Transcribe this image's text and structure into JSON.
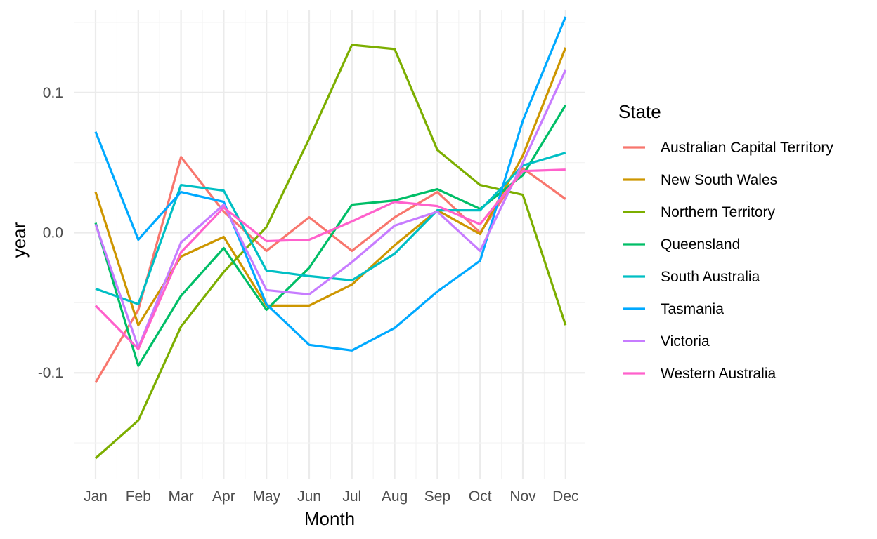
{
  "chart_data": {
    "type": "line",
    "xlabel": "Month",
    "ylabel": "year",
    "categories": [
      "Jan",
      "Feb",
      "Mar",
      "Apr",
      "May",
      "Jun",
      "Jul",
      "Aug",
      "Sep",
      "Oct",
      "Nov",
      "Dec"
    ],
    "ylim": [
      -0.176,
      0.159
    ],
    "yticks": [
      -0.1,
      0.0,
      0.1
    ],
    "ytick_labels": [
      "-0.1",
      "0.0",
      "0.1"
    ],
    "grid": true,
    "legend": {
      "title": "State",
      "position": "right"
    },
    "series": [
      {
        "name": "Australian Capital Territory",
        "color": "#F8766D",
        "values": [
          -0.107,
          -0.055,
          0.054,
          0.015,
          -0.013,
          0.011,
          -0.013,
          0.011,
          0.029,
          0.0,
          0.046,
          0.024
        ]
      },
      {
        "name": "New South Wales",
        "color": "#CD9600",
        "values": [
          0.029,
          -0.066,
          -0.017,
          -0.003,
          -0.052,
          -0.052,
          -0.037,
          -0.009,
          0.016,
          -0.001,
          0.055,
          0.132
        ]
      },
      {
        "name": "Northern Territory",
        "color": "#7CAE00",
        "values": [
          -0.161,
          -0.134,
          -0.067,
          -0.028,
          0.004,
          0.067,
          0.134,
          0.131,
          0.059,
          0.034,
          0.027,
          -0.066
        ]
      },
      {
        "name": "Queensland",
        "color": "#00BE67",
        "values": [
          0.007,
          -0.095,
          -0.045,
          -0.011,
          -0.055,
          -0.025,
          0.02,
          0.023,
          0.031,
          0.017,
          0.041,
          0.091
        ]
      },
      {
        "name": "South Australia",
        "color": "#00BFC4",
        "values": [
          -0.04,
          -0.051,
          0.034,
          0.03,
          -0.027,
          -0.031,
          -0.034,
          -0.015,
          0.016,
          0.016,
          0.048,
          0.057
        ]
      },
      {
        "name": "Tasmania",
        "color": "#00A9FF",
        "values": [
          0.072,
          -0.005,
          0.029,
          0.022,
          -0.051,
          -0.08,
          -0.084,
          -0.068,
          -0.042,
          -0.02,
          0.08,
          0.154
        ]
      },
      {
        "name": "Victoria",
        "color": "#C77CFF",
        "values": [
          0.006,
          -0.082,
          -0.007,
          0.02,
          -0.041,
          -0.044,
          -0.021,
          0.005,
          0.015,
          -0.013,
          0.05,
          0.116
        ]
      },
      {
        "name": "Western Australia",
        "color": "#FF61CC",
        "values": [
          -0.052,
          -0.083,
          -0.014,
          0.018,
          -0.006,
          -0.005,
          0.008,
          0.022,
          0.019,
          0.006,
          0.044,
          0.045
        ]
      }
    ]
  }
}
